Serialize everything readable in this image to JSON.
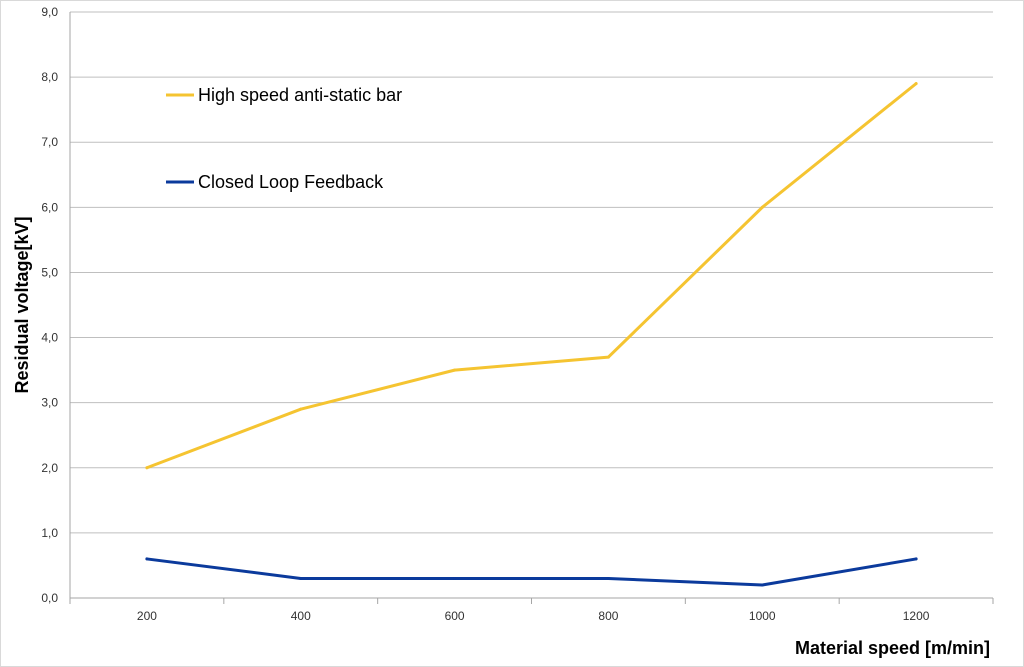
{
  "chart_data": {
    "type": "line",
    "title": "",
    "xlabel": "Material speed [m/min]",
    "ylabel": "Residual voltage[kV]",
    "categories": [
      "200",
      "400",
      "600",
      "800",
      "1000",
      "1200"
    ],
    "ylim": [
      0,
      9
    ],
    "yticks": [
      "0,0",
      "1,0",
      "2,0",
      "3,0",
      "4,0",
      "5,0",
      "6,0",
      "7,0",
      "8,0",
      "9,0"
    ],
    "grid": true,
    "legend_placement": "top-left",
    "series": [
      {
        "name": "High speed anti-static bar",
        "color": "#F5C431",
        "values": [
          2.0,
          2.9,
          3.5,
          3.7,
          6.0,
          7.9
        ]
      },
      {
        "name": "Closed Loop Feedback",
        "color": "#0B3A9C",
        "values": [
          0.6,
          0.3,
          0.3,
          0.3,
          0.2,
          0.6
        ]
      }
    ]
  }
}
